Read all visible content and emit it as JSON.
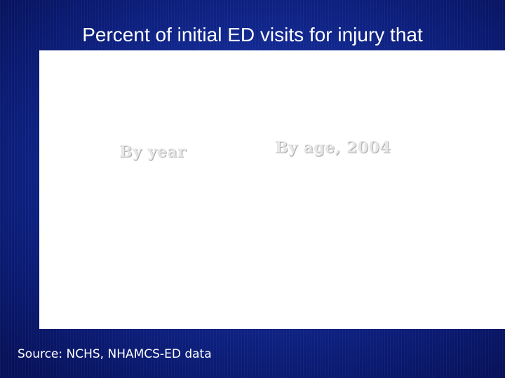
{
  "slide": {
    "title": "Percent of initial ED visits for injury that",
    "panel_labels": {
      "by_year": "By year",
      "by_age": "By age, 2004"
    },
    "source": "Source: NCHS, NHAMCS-ED data"
  },
  "colors": {
    "background": "#142c98",
    "title_text": "#ffffff",
    "panel": "#ffffff",
    "embossed_label": "#e6e6e6"
  }
}
